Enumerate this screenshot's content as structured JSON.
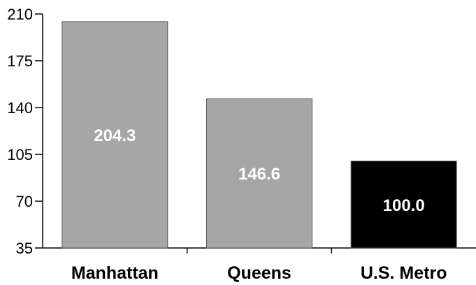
{
  "chart_data": {
    "type": "bar",
    "title": "",
    "xlabel": "",
    "ylabel": "",
    "categories": [
      "Manhattan",
      "Queens",
      "U.S. Metro"
    ],
    "values": [
      204.3,
      146.6,
      100.0
    ],
    "value_labels": [
      "204.3",
      "146.6",
      "100.0"
    ],
    "ylim": [
      35,
      210
    ],
    "yticks": [
      35,
      70,
      105,
      140,
      175,
      210
    ],
    "ytick_labels": [
      "35",
      "70",
      "105",
      "140",
      "175",
      "210"
    ],
    "bar_colors": [
      "#a6a6a6",
      "#a6a6a6",
      "#000000"
    ],
    "bar_stroke": "#555555",
    "grid": false,
    "legend": "none"
  }
}
